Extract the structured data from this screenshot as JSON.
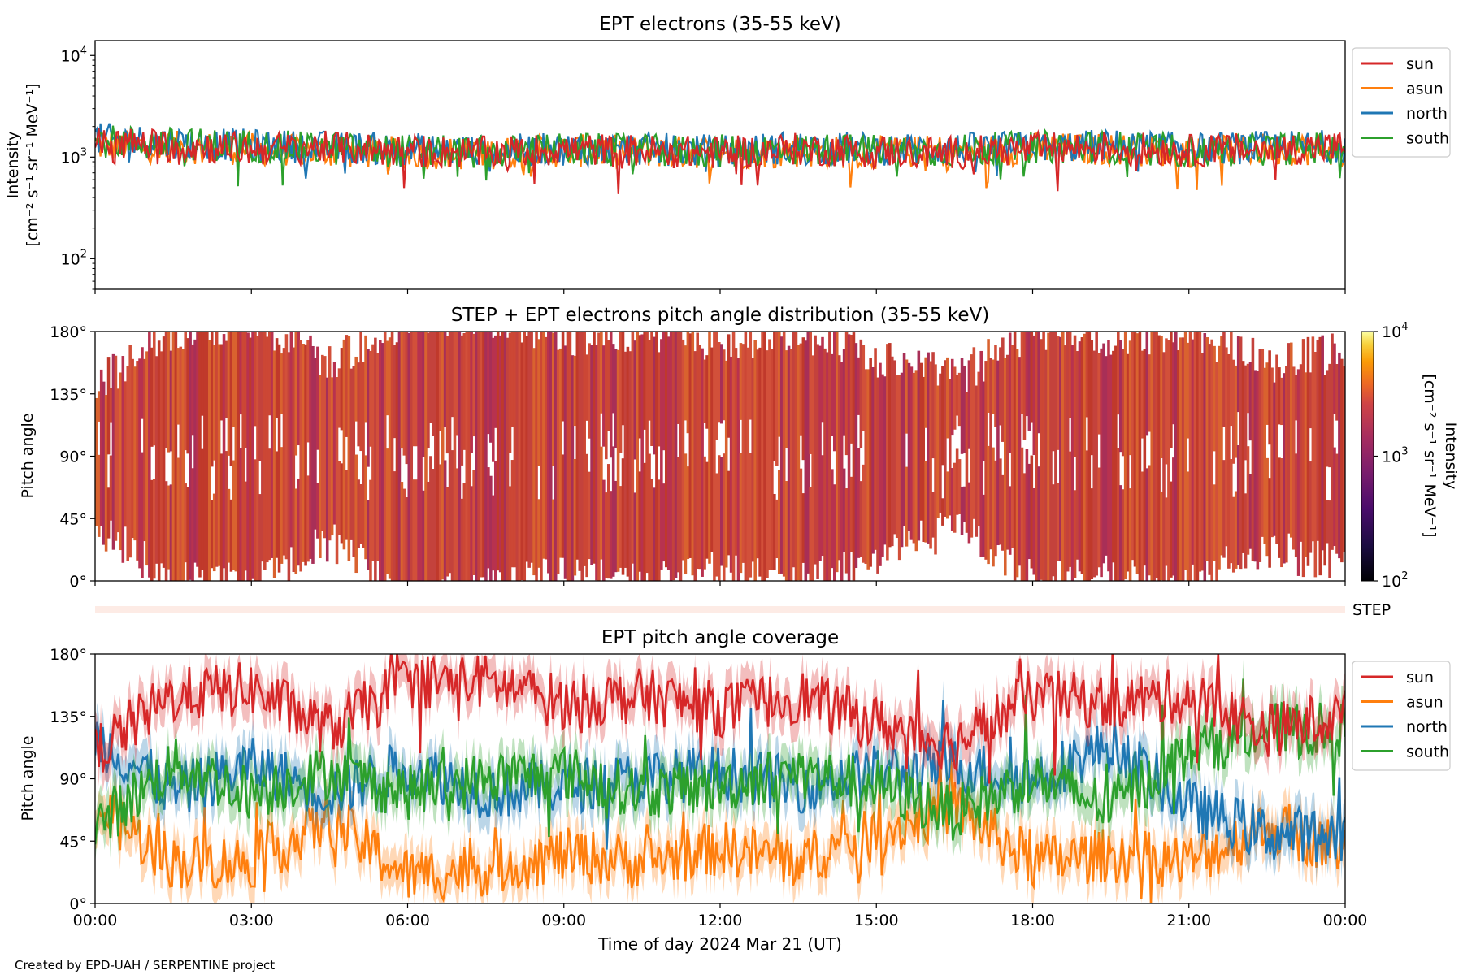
{
  "figure": {
    "xlabel": "Time of day 2024 Mar 21 (UT)",
    "credit": "Created by EPD-UAH / SERPENTINE project"
  },
  "chart_data": [
    {
      "type": "line",
      "title": "EPT electrons (35-55 keV)",
      "ylabel_line1": "Intensity",
      "ylabel_line2": "[cm⁻² s⁻¹ sr⁻¹ MeV⁻¹]",
      "yscale": "log",
      "ylim": [
        50,
        14000
      ],
      "yticks": [
        {
          "value": 100,
          "base": "10",
          "exp": "2"
        },
        {
          "value": 1000,
          "base": "10",
          "exp": "3"
        },
        {
          "value": 10000,
          "base": "10",
          "exp": "4"
        }
      ],
      "x_hours": [
        0,
        1.5,
        3,
        4.5,
        6,
        7.5,
        9,
        10.5,
        12,
        13.5,
        15,
        16.5,
        18,
        19.5,
        21,
        22.5,
        24
      ],
      "xlim_hours": [
        0,
        24
      ],
      "legend_position": "outside-right-top",
      "series": [
        {
          "name": "sun",
          "color": "#d62728",
          "values": [
            1400,
            1300,
            1200,
            1250,
            1150,
            1100,
            1200,
            1150,
            1100,
            1200,
            1150,
            1100,
            1200,
            1250,
            1150,
            1200,
            1250
          ]
        },
        {
          "name": "asun",
          "color": "#ff7f0e",
          "values": [
            1300,
            1250,
            1200,
            1150,
            1100,
            1100,
            1150,
            1150,
            1100,
            1150,
            1100,
            1150,
            1200,
            1200,
            1150,
            1200,
            1200
          ]
        },
        {
          "name": "north",
          "color": "#1f77b4",
          "values": [
            1500,
            1400,
            1300,
            1250,
            1200,
            1150,
            1200,
            1200,
            1150,
            1250,
            1200,
            1200,
            1250,
            1300,
            1200,
            1250,
            1300
          ]
        },
        {
          "name": "south",
          "color": "#2ca02c",
          "values": [
            1450,
            1350,
            1300,
            1200,
            1150,
            1100,
            1200,
            1150,
            1150,
            1200,
            1150,
            1150,
            1250,
            1250,
            1150,
            1200,
            1250
          ]
        }
      ]
    },
    {
      "type": "heatmap",
      "title": "STEP + EPT electrons pitch angle distribution (35-55 keV)",
      "ylabel": "Pitch angle",
      "ylim": [
        0,
        180
      ],
      "yticks": [
        "0°",
        "45°",
        "90°",
        "135°",
        "180°"
      ],
      "xlim_hours": [
        0,
        24
      ],
      "colorbar": {
        "label_line1": "Intensity",
        "label_line2": "[cm⁻² s⁻¹ sr⁻¹ MeV⁻¹]",
        "scale": "log",
        "range": [
          100,
          10000
        ],
        "ticks": [
          {
            "base": "10",
            "exp": "2"
          },
          {
            "base": "10",
            "exp": "3"
          },
          {
            "base": "10",
            "exp": "4"
          }
        ]
      }
    },
    {
      "type": "bar",
      "label": "STEP",
      "color": "#fdebe5"
    },
    {
      "type": "line",
      "title": "EPT pitch angle coverage",
      "ylabel": "Pitch angle",
      "ylim": [
        0,
        180
      ],
      "yticks": [
        "0°",
        "45°",
        "90°",
        "135°",
        "180°"
      ],
      "x_hours": [
        0,
        1.5,
        3,
        4.5,
        6,
        7.5,
        9,
        10.5,
        12,
        13.5,
        15,
        16.5,
        18,
        19.5,
        21,
        22.5,
        24
      ],
      "xlim_hours": [
        0,
        24
      ],
      "xticks": [
        "00:00",
        "03:00",
        "06:00",
        "09:00",
        "12:00",
        "15:00",
        "18:00",
        "21:00",
        "00:00"
      ],
      "legend_position": "outside-right-top",
      "series": [
        {
          "name": "sun",
          "color": "#d62728",
          "values": [
            110,
            150,
            155,
            125,
            160,
            160,
            145,
            150,
            140,
            150,
            130,
            115,
            150,
            145,
            150,
            125,
            135
          ]
        },
        {
          "name": "asun",
          "color": "#ff7f0e",
          "values": [
            70,
            30,
            30,
            60,
            20,
            25,
            35,
            30,
            40,
            30,
            50,
            70,
            30,
            35,
            30,
            55,
            40
          ]
        },
        {
          "name": "north",
          "color": "#1f77b4",
          "values": [
            120,
            80,
            100,
            80,
            100,
            80,
            85,
            90,
            95,
            85,
            95,
            100,
            90,
            115,
            70,
            50,
            50
          ]
        },
        {
          "name": "south",
          "color": "#2ca02c",
          "values": [
            55,
            100,
            80,
            95,
            80,
            90,
            95,
            80,
            85,
            95,
            85,
            65,
            90,
            70,
            110,
            125,
            125
          ]
        }
      ]
    }
  ]
}
